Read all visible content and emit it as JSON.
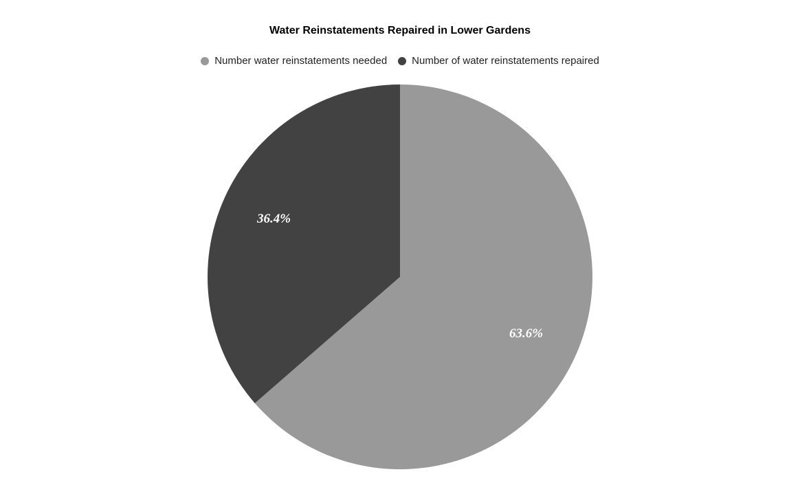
{
  "chart_data": {
    "type": "pie",
    "title": "Water Reinstatements Repaired in Lower Gardens",
    "legend_position": "top",
    "slices": [
      {
        "name": "Number water reinstatements needed",
        "value": 63.6,
        "label": "63.6%",
        "color": "#999999"
      },
      {
        "name": "Number of water reinstatements repaired",
        "value": 36.4,
        "label": "36.4%",
        "color": "#424242"
      }
    ]
  }
}
